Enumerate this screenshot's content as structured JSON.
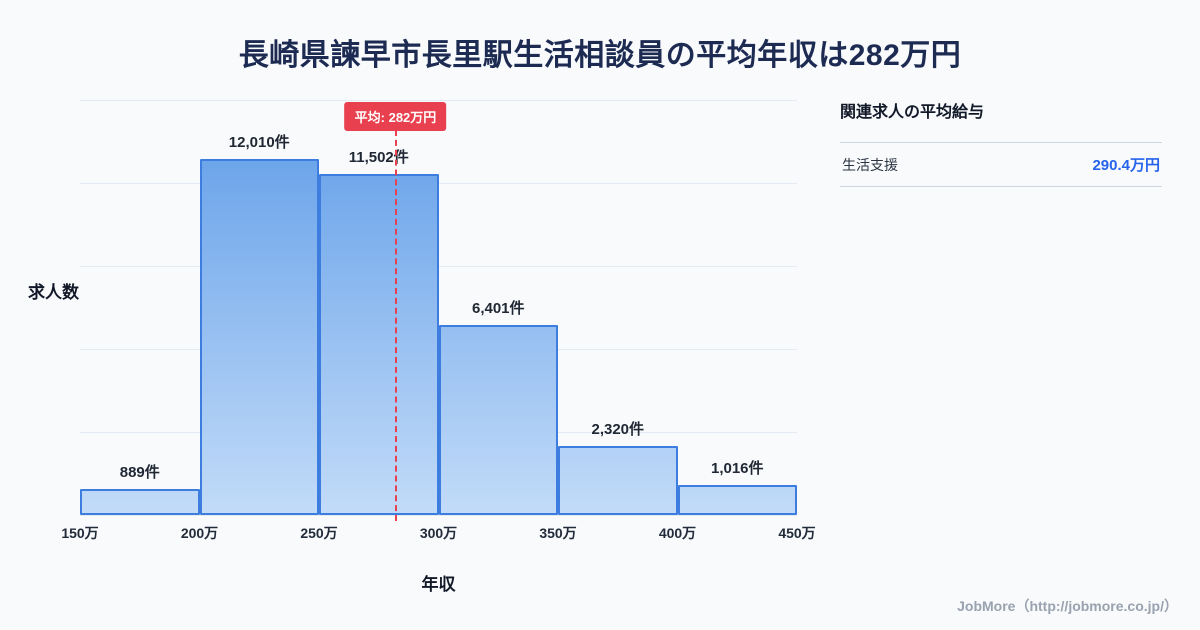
{
  "page": {
    "background": "#f8fafc",
    "title": "長崎県諫早市長里駅生活相談員の平均年収は282万円",
    "title_color": "#1d2b53",
    "footer": "JobMore（http://jobmore.co.jp/）"
  },
  "chart_data": {
    "type": "bar",
    "title": "長崎県諫早市長里駅生活相談員の平均年収は282万円",
    "xlabel": "年収",
    "ylabel": "求人数",
    "categories": [
      "150万-200万",
      "200万-250万",
      "250万-300万",
      "300万-350万",
      "350万-400万",
      "400万-450万"
    ],
    "x_ticks": [
      "150万",
      "200万",
      "250万",
      "300万",
      "350万",
      "400万",
      "450万"
    ],
    "values": [
      889,
      12010,
      11502,
      6401,
      2320,
      1016
    ],
    "value_labels": [
      "889件",
      "12,010件",
      "11,502件",
      "6,401件",
      "2,320件",
      "1,016件"
    ],
    "unit": "件",
    "ylim": [
      0,
      14000
    ],
    "grid": true,
    "grid_divisions": 5,
    "x_range": [
      150,
      450
    ],
    "legend": "none",
    "average": {
      "label": "平均: 282万円",
      "value": 282,
      "color": "#e8404e"
    },
    "bar_color_top": "#5e9ce8",
    "bar_color_bottom": "#c2dbf8",
    "bar_border_color": "#3d7de0"
  },
  "side_panel": {
    "title": "関連求人の平均給与",
    "rows": [
      {
        "label": "生活支援",
        "value": "290.4万円"
      }
    ],
    "value_color": "#2563eb"
  }
}
